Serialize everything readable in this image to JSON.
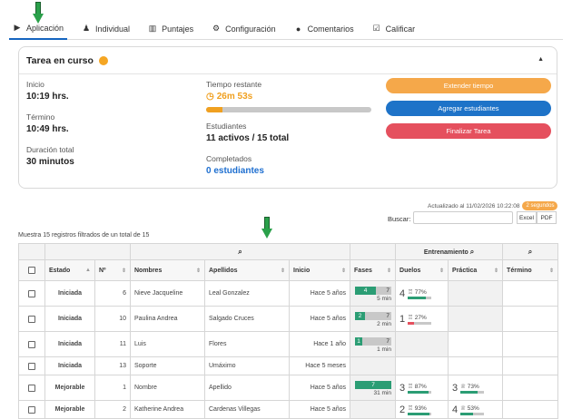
{
  "tabs": [
    {
      "label": "Aplicación",
      "icon": "play-icon"
    },
    {
      "label": "Individual",
      "icon": "person-icon"
    },
    {
      "label": "Puntajes",
      "icon": "bar-chart-icon"
    },
    {
      "label": "Configuración",
      "icon": "gear-icon"
    },
    {
      "label": "Comentarios",
      "icon": "comments-icon"
    },
    {
      "label": "Calificar",
      "icon": "checkbox-edit-icon"
    }
  ],
  "task": {
    "title": "Tarea en curso",
    "inicio_label": "Inicio",
    "inicio_value": "10:19 hrs.",
    "termino_label": "Término",
    "termino_value": "10:49 hrs.",
    "duracion_label": "Duración total",
    "duracion_value": "30 minutos",
    "tiempo_label": "Tiempo restante",
    "tiempo_value": "26m 53s",
    "tiempo_progress": 0.1,
    "estudiantes_label": "Estudiantes",
    "estudiantes_value": "11 activos / 15 total",
    "completados_label": "Completados",
    "completados_value": "0 estudiantes",
    "btn_extender": "Extender tiempo",
    "btn_agregar": "Agregar estudiantes",
    "btn_finalizar": "Finalizar Tarea"
  },
  "updated": {
    "text": "Actualizado al 11/02/2026 10:22:08",
    "badge": "2 segundos"
  },
  "search": {
    "label": "Buscar:",
    "value": ""
  },
  "export": {
    "excel": "Excel",
    "pdf": "PDF"
  },
  "shown_text": "Muestra 15 registros filtrados de un total de 15",
  "table": {
    "group_headers": {
      "entrenamiento": "Entrenamiento"
    },
    "headers": [
      "Estado",
      "Nº",
      "Nombres",
      "Apellidos",
      "Inicio",
      "Fases",
      "Duelos",
      "Práctica",
      "Término"
    ],
    "rows": [
      {
        "estado": "Iniciada",
        "n": "6",
        "nombres": "Nieve Jacqueline",
        "apellidos": "Leal Gonzalez",
        "inicio": "Hace 5 años",
        "fase_done": "4",
        "fase_total": "7",
        "fase_min": "5 min",
        "duel_n": "4",
        "duel_pct": "77%",
        "duel_color": "#2b9d74"
      },
      {
        "estado": "Iniciada",
        "n": "10",
        "nombres": "Paulina Andrea",
        "apellidos": "Salgado Cruces",
        "inicio": "Hace 5 años",
        "fase_done": "2",
        "fase_total": "7",
        "fase_min": "2 min",
        "duel_n": "1",
        "duel_pct": "27%",
        "duel_color": "#e5505e"
      },
      {
        "estado": "Iniciada",
        "n": "11",
        "nombres": "Luis",
        "apellidos": "Flores",
        "inicio": "Hace 1 año",
        "fase_done": "1",
        "fase_total": "7",
        "fase_min": "1 min",
        "duel_n": "",
        "duel_pct": "",
        "duel_color": ""
      },
      {
        "estado": "Iniciada",
        "n": "13",
        "nombres": "Soporte",
        "apellidos": "Umáximo",
        "inicio": "Hace 5 meses",
        "fase_done": "",
        "fase_total": "",
        "fase_min": "",
        "duel_n": "",
        "duel_pct": "",
        "duel_color": ""
      },
      {
        "estado": "Mejorable",
        "n": "1",
        "nombres": "Nombre",
        "apellidos": "Apellido",
        "inicio": "Hace 5 años",
        "fase_done": "7",
        "fase_total": "",
        "fase_min": "31 min",
        "duel_n": "3",
        "duel_pct": "87%",
        "duel_color": "#2b9d74",
        "prac_n": "3",
        "prac_pct": "73%"
      },
      {
        "estado": "Mejorable",
        "n": "2",
        "nombres": "Katherine Andrea",
        "apellidos": "Cardenas Villegas",
        "inicio": "Hace 5 años",
        "fase_done": "",
        "fase_total": "",
        "fase_min": "",
        "duel_n": "2",
        "duel_pct": "93%",
        "duel_color": "#2b9d74",
        "prac_n": "4",
        "prac_pct": "53%"
      }
    ]
  },
  "colors": {
    "accent": "#1e73c8",
    "orange": "#f5a84a",
    "red": "#e5505e",
    "green": "#2b9d74"
  }
}
